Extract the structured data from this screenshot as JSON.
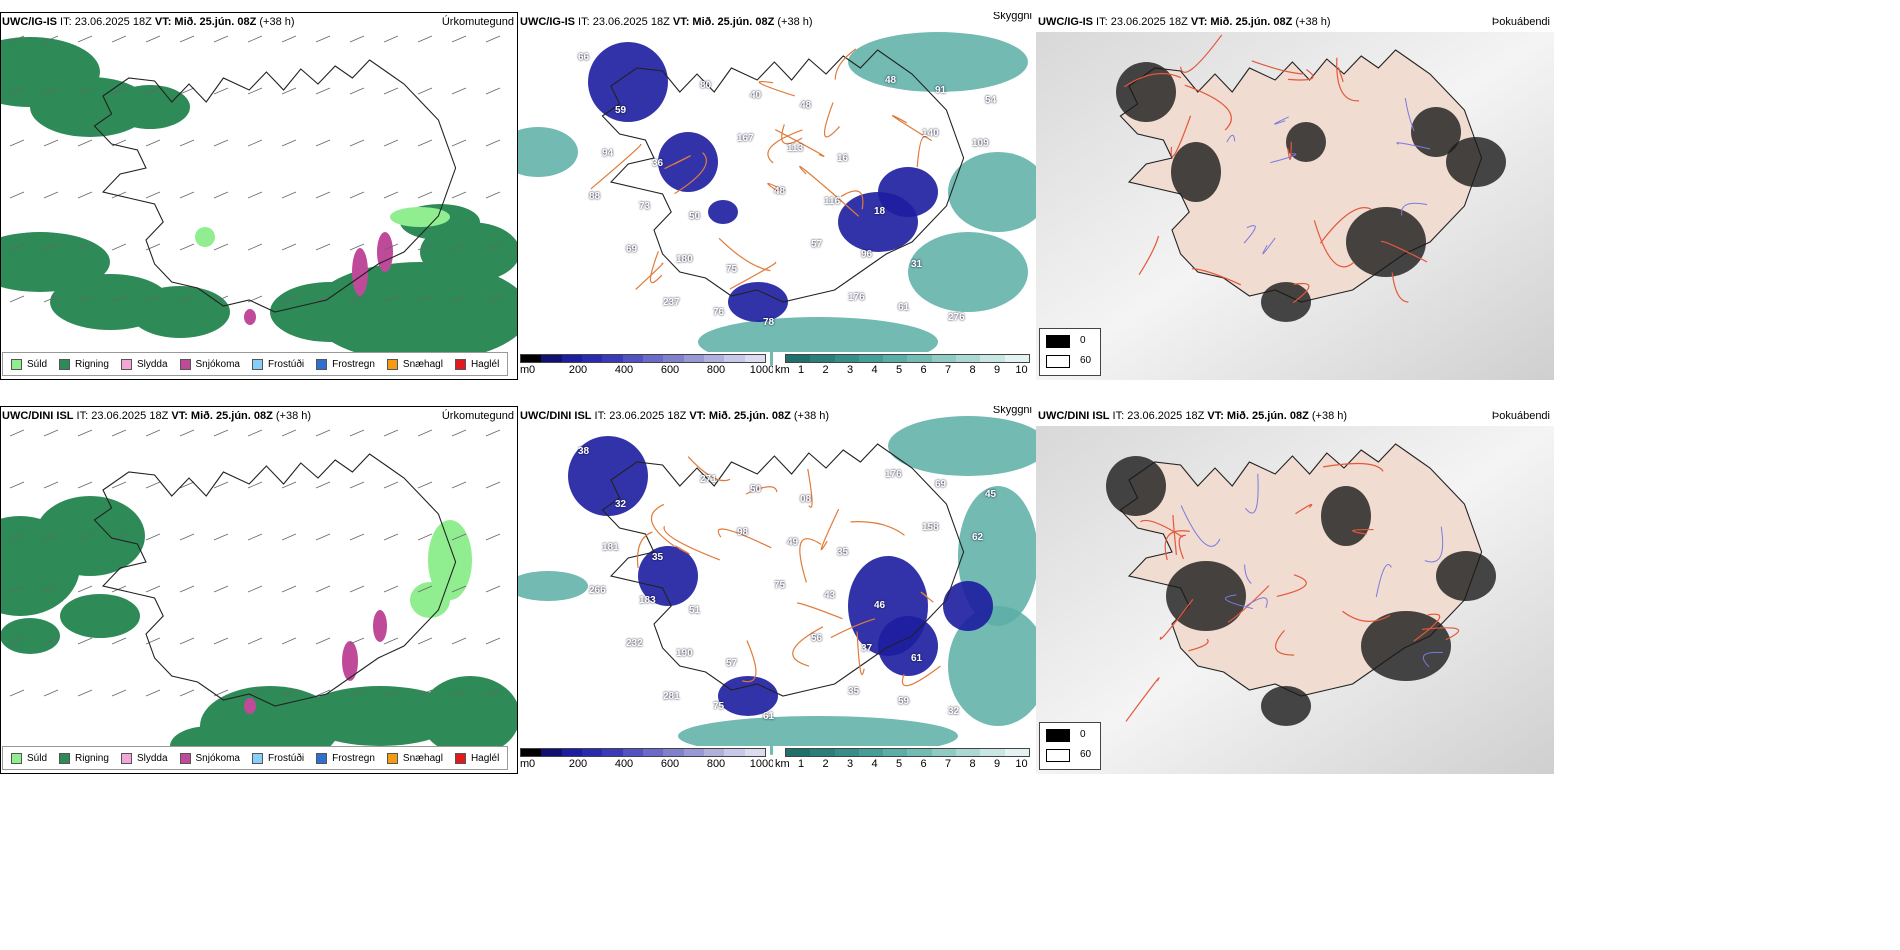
{
  "rows": [
    {
      "model": "UWC/IG-IS",
      "init_prefix": "IT:",
      "init": "23.06.2025 18Z",
      "valid_prefix": "VT:",
      "valid": "Mið. 25.jún. 08Z",
      "lead": "(+38 h)",
      "cloud_labels": [
        "66",
        "59",
        "36",
        "50",
        "75",
        "78",
        "48",
        "16",
        "18",
        "31",
        "276",
        "54",
        "94",
        "73",
        "180",
        "76",
        "40",
        "113",
        "116",
        "96",
        "61",
        "91",
        "109",
        "88",
        "69",
        "237",
        "80",
        "167",
        "48",
        "57",
        "176",
        "48",
        "140"
      ],
      "precip_coverage": "top"
    },
    {
      "model": "UWC/DINI ISL",
      "init_prefix": "IT:",
      "init": "23.06.2025 18Z",
      "valid_prefix": "VT:",
      "valid": "Mið. 25.jún. 08Z",
      "lead": "(+38 h)",
      "cloud_labels": [
        "38",
        "32",
        "35",
        "51",
        "57",
        "61",
        "08",
        "35",
        "46",
        "61",
        "32",
        "45",
        "181",
        "183",
        "190",
        "75",
        "50",
        "49",
        "43",
        "37",
        "59",
        "69",
        "62",
        "266",
        "232",
        "281",
        "271",
        "98",
        "75",
        "56",
        "35",
        "176",
        "158"
      ],
      "precip_coverage": "bottom"
    }
  ],
  "panels": {
    "precip_title": "Úrkomutegund",
    "cloud_title": "Skyggni",
    "fog_title": "Þokuábendi"
  },
  "precip_legend": [
    {
      "label": "Súld",
      "color": "#90ee90"
    },
    {
      "label": "Rigning",
      "color": "#2e8b57"
    },
    {
      "label": "Slydda",
      "color": "#f4a6d7"
    },
    {
      "label": "Snjókoma",
      "color": "#c04a9a"
    },
    {
      "label": "Frostúði",
      "color": "#87cefa"
    },
    {
      "label": "Frostregn",
      "color": "#2f6fd0"
    },
    {
      "label": "Snæhagl",
      "color": "#f39c12"
    },
    {
      "label": "Haglél",
      "color": "#e31a1c"
    }
  ],
  "ceiling_bar": {
    "unit": "m",
    "ticks": [
      "0",
      "200",
      "400",
      "600",
      "800",
      "1000"
    ],
    "colors": [
      "#000000",
      "#101070",
      "#1d1da0",
      "#2a2ab0",
      "#3a3ab8",
      "#5252c0",
      "#6a6ac8",
      "#8080cc",
      "#9898d4",
      "#b0b0dc",
      "#c8c8e8",
      "#dcdcf0"
    ]
  },
  "visibility_bar": {
    "unit": "km",
    "ticks": [
      "1",
      "2",
      "3",
      "4",
      "5",
      "6",
      "7",
      "8",
      "9",
      "10"
    ],
    "colors": [
      "#1f6f6a",
      "#2a7f78",
      "#358f88",
      "#44a097",
      "#5aaea6",
      "#73bcb4",
      "#8fcac3",
      "#abd8d2",
      "#c8e6e2",
      "#e4f3f1"
    ]
  },
  "fog_legend": [
    {
      "label": "0",
      "color": "#000000"
    },
    {
      "label": "60",
      "color": "#ffffff"
    }
  ]
}
